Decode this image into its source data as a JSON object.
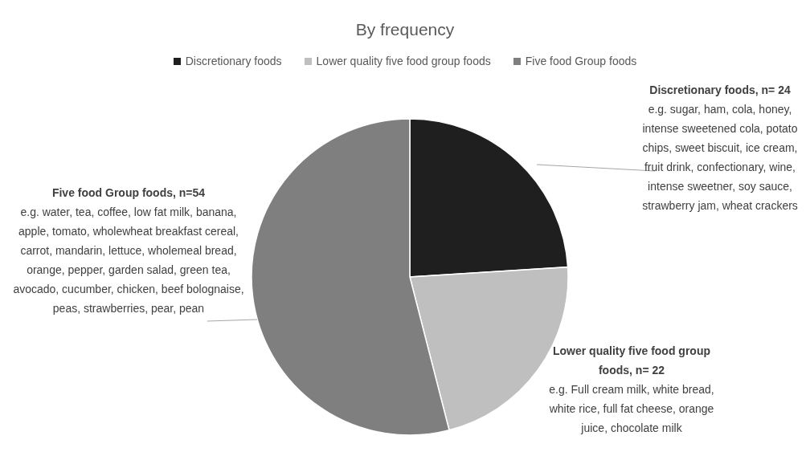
{
  "chart_data": {
    "type": "pie",
    "title": "By frequency",
    "categories": [
      "Discretionary foods",
      "Lower quality five food group foods",
      "Five food Group foods"
    ],
    "values": [
      24,
      22,
      54
    ],
    "colors": [
      "#1f1f1f",
      "#bfbfbf",
      "#7f7f7f"
    ],
    "legend": "top",
    "annotations": [
      "Discretionary foods, n= 24",
      "e.g. sugar, ham, cola, honey, intense sweetened cola, potato chips, sweet biscuit, ice cream, fruit drink, confectionary, wine, intense sweetner, soy sauce, strawberry jam, wheat crackers",
      "Lower quality five food group foods, n= 22",
      "e.g. Full cream milk, white bread, white rice, full fat cheese, orange juice, chocolate milk",
      "Five food Group foods, n=54",
      "e.g. water, tea, coffee, low fat milk, banana, apple, tomato, wholewheat breakfast cereal, carrot, mandarin, lettuce, wholemeal bread, orange, pepper, garden salad, green tea, avocado, cucumber, chicken, beef bolognaise, peas, strawberries, pear, pean"
    ]
  }
}
